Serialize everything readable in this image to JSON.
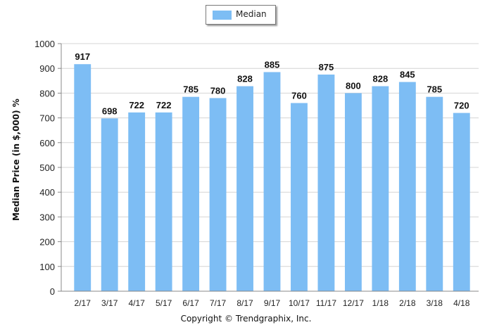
{
  "chart_data": {
    "type": "bar",
    "categories": [
      "2/17",
      "3/17",
      "4/17",
      "5/17",
      "6/17",
      "7/17",
      "8/17",
      "9/17",
      "10/17",
      "11/17",
      "12/17",
      "1/18",
      "2/18",
      "3/18",
      "4/18"
    ],
    "series": [
      {
        "name": "Median",
        "values": [
          917,
          698,
          722,
          722,
          785,
          780,
          828,
          885,
          760,
          875,
          800,
          828,
          845,
          785,
          720
        ]
      }
    ],
    "data_labels": [
      "917",
      "698",
      "722",
      "722",
      "785",
      "780",
      "828",
      "885",
      "760",
      "875",
      "800",
      "828",
      "845",
      "785",
      "720"
    ],
    "yticks": [
      "0",
      "100",
      "200",
      "300",
      "400",
      "500",
      "600",
      "700",
      "800",
      "900",
      "1000"
    ],
    "ylim": [
      0,
      1000
    ],
    "ylabel": "Median Price (in $,000) %",
    "xlabel": "",
    "legend": "top-center",
    "grid": true,
    "bar_color": "#7dbdf4"
  },
  "footer": "Copyright © Trendgraphix, Inc."
}
